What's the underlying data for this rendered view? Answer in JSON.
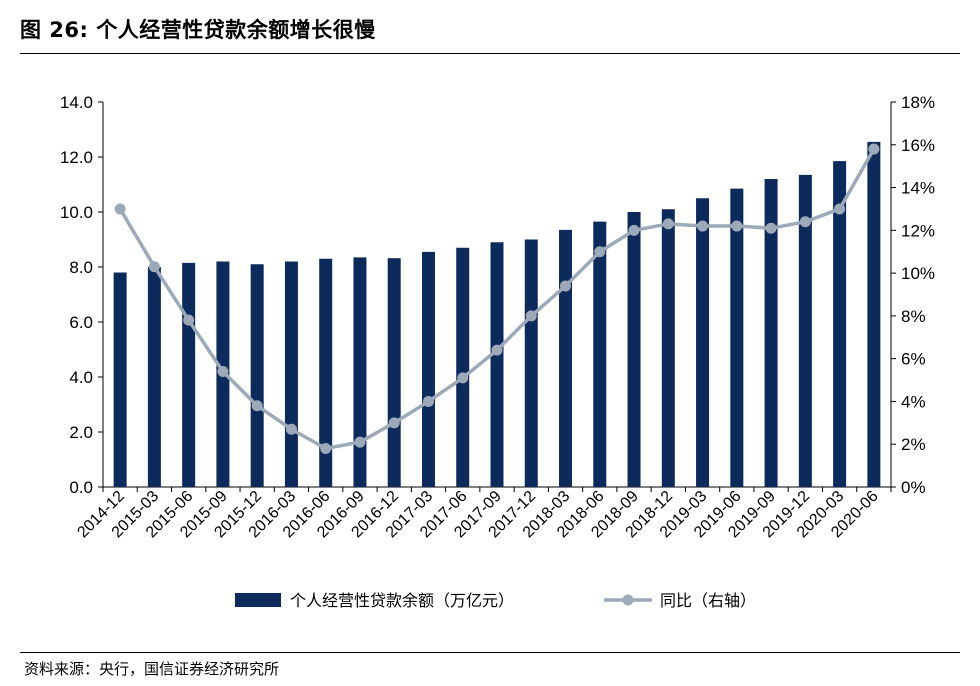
{
  "figure": {
    "title": "图 26:  个人经营性贷款余额增长很慢",
    "source": "资料来源：央行，国信证券经济研究所"
  },
  "chart_data": {
    "type": "bar",
    "categories": [
      "2014-12",
      "2015-03",
      "2015-06",
      "2015-09",
      "2015-12",
      "2016-03",
      "2016-06",
      "2016-09",
      "2016-12",
      "2017-03",
      "2017-06",
      "2017-09",
      "2017-12",
      "2018-03",
      "2018-06",
      "2018-09",
      "2018-12",
      "2019-03",
      "2019-06",
      "2019-09",
      "2019-12",
      "2020-03",
      "2020-06"
    ],
    "series": [
      {
        "name": "个人经营性贷款余额（万亿元）",
        "type": "bar",
        "axis": "left",
        "color": "#0d2a5c",
        "values": [
          7.8,
          8.0,
          8.15,
          8.2,
          8.1,
          8.2,
          8.3,
          8.35,
          8.32,
          8.55,
          8.7,
          8.9,
          9.0,
          9.35,
          9.65,
          10.0,
          10.1,
          10.5,
          10.85,
          11.2,
          11.35,
          11.85,
          12.55
        ]
      },
      {
        "name": "同比（右轴）",
        "type": "line",
        "axis": "right",
        "color": "#9ca9b8",
        "values": [
          13.0,
          10.3,
          7.8,
          5.4,
          3.8,
          2.7,
          1.8,
          2.1,
          3.0,
          4.0,
          5.1,
          6.4,
          8.0,
          9.4,
          11.0,
          12.0,
          12.3,
          12.2,
          12.2,
          12.1,
          12.4,
          13.0,
          15.8
        ]
      }
    ],
    "y_left": {
      "min": 0,
      "max": 14,
      "ticks": [
        "0.0",
        "2.0",
        "4.0",
        "6.0",
        "8.0",
        "10.0",
        "12.0",
        "14.0"
      ]
    },
    "y_right": {
      "min": 0,
      "max": 18,
      "ticks": [
        "0%",
        "2%",
        "4%",
        "6%",
        "8%",
        "10%",
        "12%",
        "14%",
        "16%",
        "18%"
      ]
    },
    "grid": false,
    "legend_position": "bottom"
  }
}
